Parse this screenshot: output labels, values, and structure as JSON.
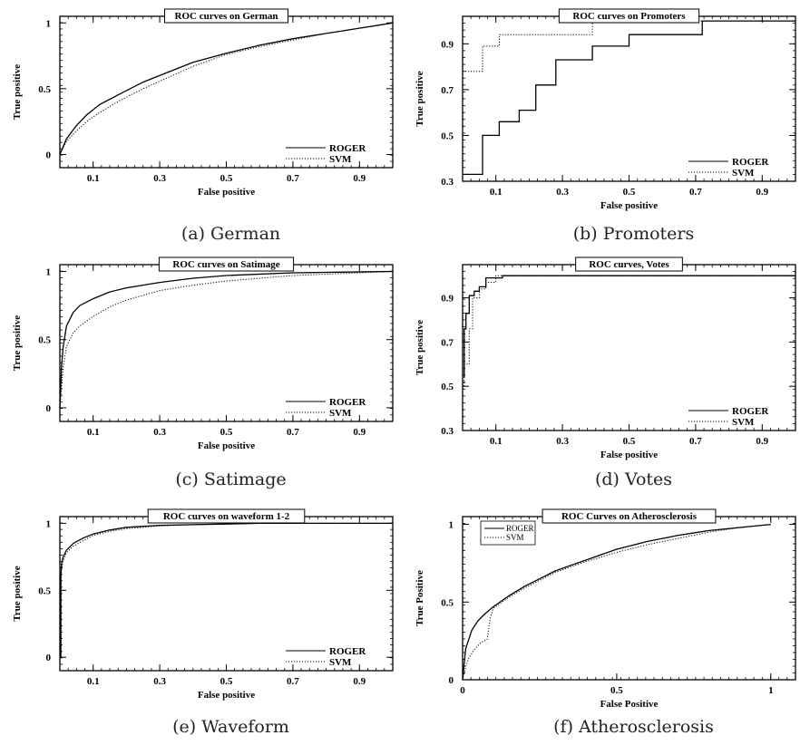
{
  "chart_data": [
    {
      "type": "line",
      "title": "ROC curves on German",
      "caption": "(a) German",
      "xlabel": "False positive",
      "ylabel": "True positive",
      "xlim": [
        0,
        1
      ],
      "ylim": [
        -0.1,
        1.05
      ],
      "xticks": [
        "0.1",
        "0.3",
        "0.5",
        "0.7",
        "0.9"
      ],
      "yticks": [
        "0",
        "0.5",
        "1"
      ],
      "legend_position": "bottom-right",
      "series": [
        {
          "name": "ROGER",
          "style": "solid",
          "x": [
            0,
            0.02,
            0.05,
            0.08,
            0.12,
            0.18,
            0.25,
            0.32,
            0.4,
            0.5,
            0.6,
            0.7,
            0.8,
            0.9,
            1
          ],
          "y": [
            0,
            0.12,
            0.22,
            0.3,
            0.38,
            0.46,
            0.55,
            0.62,
            0.7,
            0.77,
            0.83,
            0.88,
            0.92,
            0.96,
            1
          ]
        },
        {
          "name": "SVM",
          "style": "dotted",
          "x": [
            0,
            0.02,
            0.05,
            0.08,
            0.12,
            0.18,
            0.25,
            0.32,
            0.4,
            0.5,
            0.6,
            0.7,
            0.8,
            0.9,
            1
          ],
          "y": [
            0,
            0.1,
            0.18,
            0.25,
            0.32,
            0.41,
            0.5,
            0.58,
            0.67,
            0.76,
            0.82,
            0.87,
            0.92,
            0.96,
            1
          ]
        }
      ]
    },
    {
      "type": "line",
      "title": "ROC curves on Promoters",
      "caption": "(b) Promoters",
      "xlabel": "False positive",
      "ylabel": "True positive",
      "xlim": [
        0,
        1
      ],
      "ylim": [
        0.3,
        1.02
      ],
      "xticks": [
        "0.1",
        "0.3",
        "0.5",
        "0.7",
        "0.9"
      ],
      "yticks": [
        "0.3",
        "0.5",
        "0.7",
        "0.9"
      ],
      "legend_position": "bottom-right",
      "series": [
        {
          "name": "ROGER",
          "style": "solid",
          "x": [
            0,
            0.06,
            0.06,
            0.11,
            0.11,
            0.17,
            0.17,
            0.22,
            0.22,
            0.28,
            0.28,
            0.39,
            0.39,
            0.5,
            0.5,
            0.72,
            0.72,
            1
          ],
          "y": [
            0.33,
            0.33,
            0.5,
            0.5,
            0.56,
            0.56,
            0.61,
            0.61,
            0.72,
            0.72,
            0.83,
            0.83,
            0.89,
            0.89,
            0.94,
            0.94,
            1,
            1
          ]
        },
        {
          "name": "SVM",
          "style": "dotted",
          "x": [
            0,
            0.06,
            0.06,
            0.11,
            0.11,
            0.39,
            0.39,
            1
          ],
          "y": [
            0.78,
            0.78,
            0.89,
            0.89,
            0.94,
            0.94,
            1,
            1
          ]
        }
      ]
    },
    {
      "type": "line",
      "title": "ROC curves on Satimage",
      "caption": "(c) Satimage",
      "xlabel": "False positive",
      "ylabel": "True positive",
      "xlim": [
        0,
        1
      ],
      "ylim": [
        -0.1,
        1.05
      ],
      "xticks": [
        "0.1",
        "0.3",
        "0.5",
        "0.7",
        "0.9"
      ],
      "yticks": [
        "0",
        "0.5",
        "1"
      ],
      "legend_position": "bottom-right",
      "series": [
        {
          "name": "ROGER",
          "style": "solid",
          "x": [
            0,
            0.005,
            0.01,
            0.02,
            0.04,
            0.06,
            0.1,
            0.15,
            0.2,
            0.3,
            0.4,
            0.5,
            0.7,
            1
          ],
          "y": [
            0,
            0.3,
            0.45,
            0.6,
            0.7,
            0.75,
            0.8,
            0.85,
            0.88,
            0.92,
            0.95,
            0.97,
            0.99,
            1
          ]
        },
        {
          "name": "SVM",
          "style": "dotted",
          "x": [
            0,
            0.005,
            0.01,
            0.02,
            0.04,
            0.06,
            0.1,
            0.15,
            0.2,
            0.3,
            0.4,
            0.5,
            0.7,
            1
          ],
          "y": [
            0,
            0.15,
            0.3,
            0.45,
            0.55,
            0.6,
            0.67,
            0.74,
            0.79,
            0.86,
            0.9,
            0.93,
            0.97,
            1
          ]
        }
      ]
    },
    {
      "type": "line",
      "title": "ROC curves, Votes",
      "caption": "(d) Votes",
      "xlabel": "False positive",
      "ylabel": "True positive",
      "xlim": [
        0,
        1
      ],
      "ylim": [
        0.3,
        1.05
      ],
      "xticks": [
        "0.1",
        "0.3",
        "0.5",
        "0.7",
        "0.9"
      ],
      "yticks": [
        "0.3",
        "0.5",
        "0.7",
        "0.9"
      ],
      "legend_position": "bottom-right",
      "series": [
        {
          "name": "ROGER",
          "style": "solid",
          "x": [
            0.005,
            0.005,
            0.01,
            0.01,
            0.02,
            0.02,
            0.035,
            0.035,
            0.05,
            0.05,
            0.07,
            0.07,
            0.12,
            0.12,
            1
          ],
          "y": [
            0.54,
            0.76,
            0.76,
            0.83,
            0.83,
            0.91,
            0.91,
            0.93,
            0.93,
            0.95,
            0.95,
            0.99,
            0.99,
            1,
            1
          ]
        },
        {
          "name": "SVM",
          "style": "dotted",
          "x": [
            0.005,
            0.005,
            0.02,
            0.02,
            0.03,
            0.03,
            0.05,
            0.05,
            0.07,
            0.07,
            0.1,
            0.1,
            1
          ],
          "y": [
            0.5,
            0.6,
            0.6,
            0.76,
            0.76,
            0.9,
            0.9,
            0.94,
            0.94,
            0.97,
            0.97,
            1,
            1
          ]
        }
      ]
    },
    {
      "type": "line",
      "title": "ROC curves on waveform 1-2",
      "caption": "(e) Waveform",
      "xlabel": "False positive",
      "ylabel": "True positive",
      "xlim": [
        0,
        1
      ],
      "ylim": [
        -0.1,
        1.05
      ],
      "xticks": [
        "0.1",
        "0.3",
        "0.5",
        "0.7",
        "0.9"
      ],
      "yticks": [
        "0",
        "0.5",
        "1"
      ],
      "legend_position": "bottom-right",
      "series": [
        {
          "name": "ROGER",
          "style": "solid",
          "x": [
            0.003,
            0.003,
            0.005,
            0.01,
            0.02,
            0.04,
            0.07,
            0.1,
            0.15,
            0.2,
            0.3,
            0.4,
            0.6,
            1
          ],
          "y": [
            0,
            0.6,
            0.7,
            0.75,
            0.8,
            0.85,
            0.89,
            0.92,
            0.95,
            0.97,
            0.985,
            0.99,
            1,
            1
          ]
        },
        {
          "name": "SVM",
          "style": "dotted",
          "x": [
            0.003,
            0.003,
            0.005,
            0.01,
            0.02,
            0.04,
            0.07,
            0.1,
            0.15,
            0.2,
            0.3,
            0.4,
            0.6,
            1
          ],
          "y": [
            0,
            0.55,
            0.65,
            0.72,
            0.78,
            0.83,
            0.87,
            0.91,
            0.94,
            0.96,
            0.98,
            0.99,
            1,
            1
          ]
        }
      ]
    },
    {
      "type": "line",
      "title": "ROC Curves on Atherosclerosis",
      "caption": "(f) Atherosclerosis",
      "xlabel": "False Positive",
      "ylabel": "True Positive",
      "xlim": [
        0,
        1.08
      ],
      "ylim": [
        0,
        1.05
      ],
      "xticks": [
        "0",
        "0.5",
        "1"
      ],
      "yticks": [
        "0",
        "0.5",
        "1"
      ],
      "legend_position": "top-left",
      "series": [
        {
          "name": "ROGER",
          "style": "solid",
          "x": [
            0,
            0.005,
            0.01,
            0.02,
            0.03,
            0.05,
            0.07,
            0.1,
            0.15,
            0.2,
            0.25,
            0.3,
            0.4,
            0.5,
            0.6,
            0.7,
            0.8,
            0.9,
            1
          ],
          "y": [
            0,
            0.1,
            0.2,
            0.26,
            0.32,
            0.38,
            0.42,
            0.47,
            0.54,
            0.6,
            0.65,
            0.7,
            0.77,
            0.84,
            0.89,
            0.93,
            0.96,
            0.98,
            1
          ]
        },
        {
          "name": "SVM",
          "style": "dotted",
          "x": [
            0,
            0.01,
            0.02,
            0.04,
            0.06,
            0.08,
            0.09,
            0.1,
            0.15,
            0.2,
            0.25,
            0.3,
            0.4,
            0.5,
            0.6,
            0.7,
            0.8,
            0.9,
            1
          ],
          "y": [
            0,
            0.08,
            0.14,
            0.2,
            0.24,
            0.26,
            0.4,
            0.46,
            0.53,
            0.59,
            0.64,
            0.69,
            0.76,
            0.82,
            0.87,
            0.91,
            0.95,
            0.98,
            1
          ]
        }
      ]
    }
  ]
}
